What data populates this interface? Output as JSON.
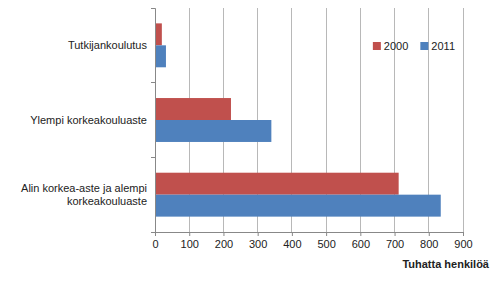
{
  "chart_data": {
    "type": "bar",
    "orientation": "horizontal",
    "categories": [
      "Tutkijankoulutus",
      "Ylempi korkeakouluaste",
      "Alin korkea-aste ja alempi korkeakouluaste"
    ],
    "series": [
      {
        "name": "2000",
        "color": "#c0504d",
        "values": [
          20,
          222,
          712
        ]
      },
      {
        "name": "2011",
        "color": "#4f81bd",
        "values": [
          32,
          340,
          835
        ]
      }
    ],
    "x_label": "Tuhatta henkilöä",
    "xlim": [
      0,
      900
    ],
    "xticks": [
      0,
      100,
      200,
      300,
      400,
      500,
      600,
      700,
      800,
      900
    ],
    "grid": true,
    "legend": "top-right"
  }
}
